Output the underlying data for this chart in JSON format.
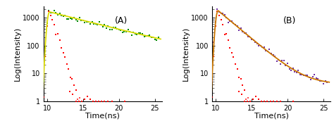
{
  "panel_A_label": "(A)",
  "panel_B_label": "(B)",
  "xlabel": "Time(ns)",
  "ylabel": "Log(Intensity)",
  "xlim": [
    9.5,
    26
  ],
  "ylim_log": [
    1,
    2500
  ],
  "yticks": [
    1,
    10,
    100,
    1000
  ],
  "xticks": [
    10,
    15,
    20,
    25
  ],
  "irf_color": "#ff0000",
  "decay_A_color": "#008800",
  "fit_A_color": "#dddd00",
  "decay_B_color": "#7030a0",
  "fit_B_color": "#cc7700",
  "peak_time": 10.35,
  "irf_peak": 1800,
  "decay_A_peak": 1600,
  "decay_B_peak": 1800,
  "irf_decay_tau": 0.55,
  "decay_A_tau": 6.5,
  "decay_A_baseline": 22,
  "decay_B_tau": 2.0,
  "decay_B_baseline": 4.0,
  "noise_floor": 1.0,
  "figsize": [
    4.74,
    1.89
  ],
  "dpi": 100
}
